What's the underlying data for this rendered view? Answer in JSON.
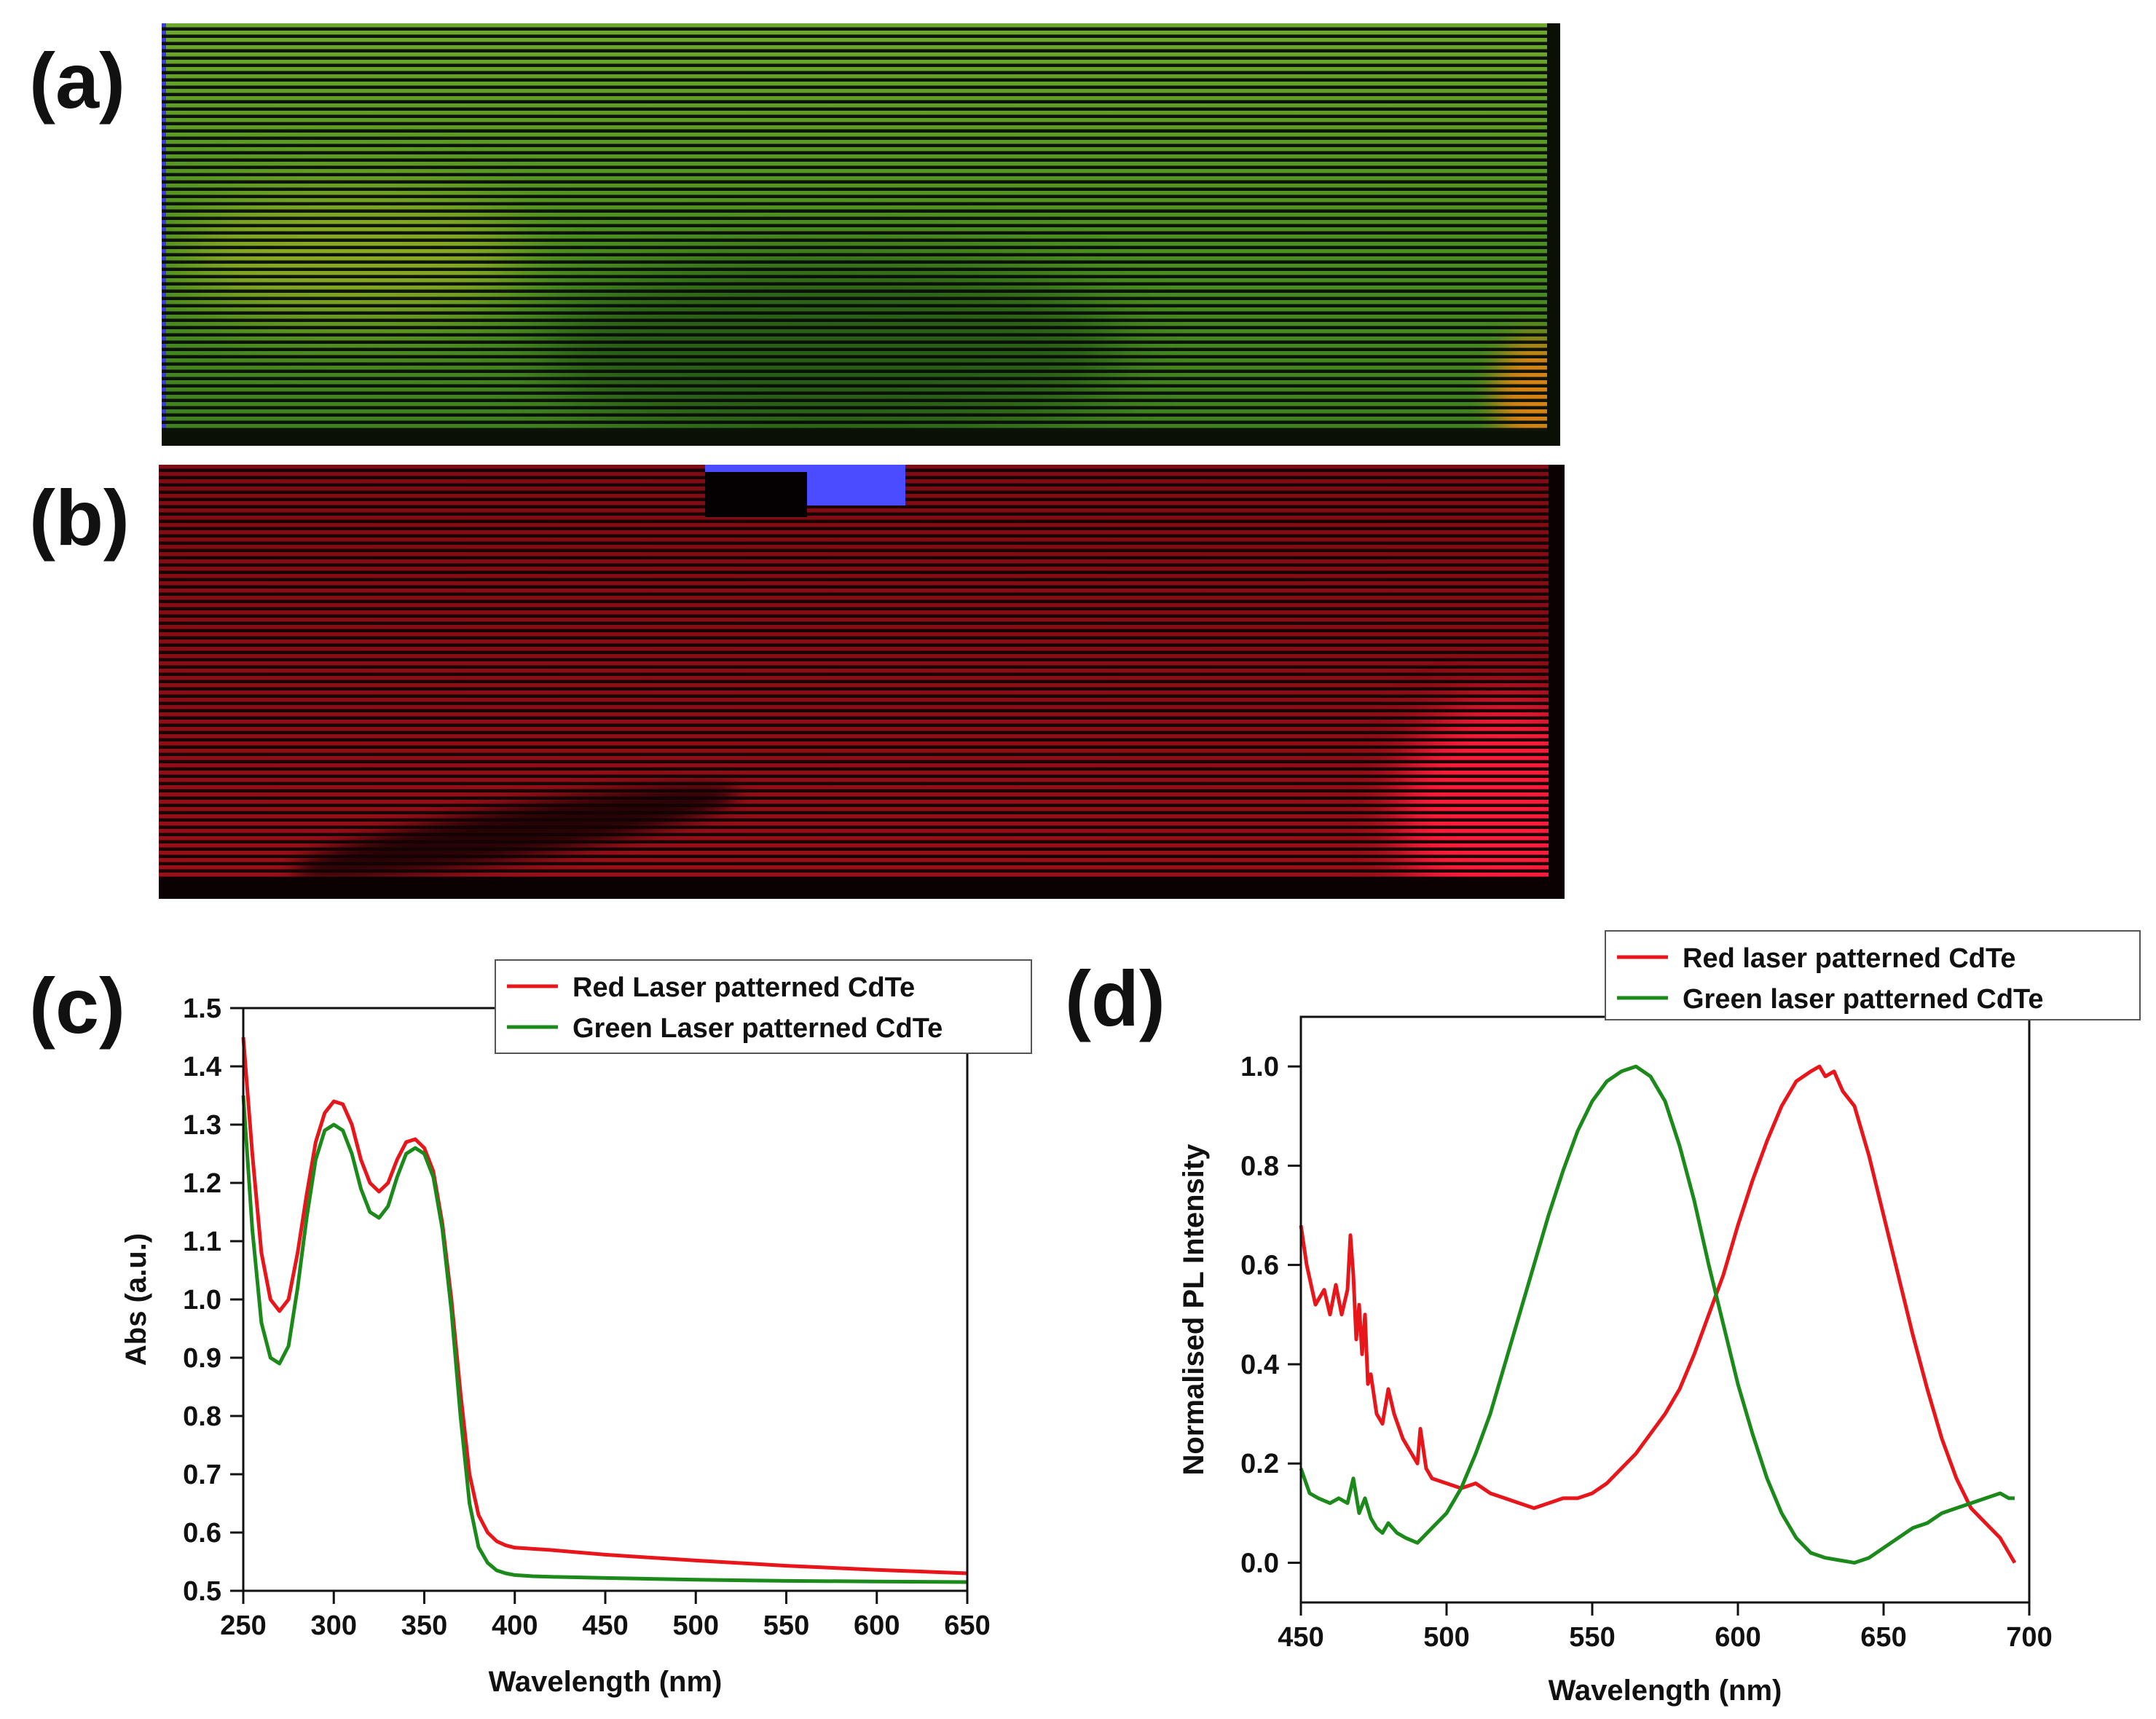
{
  "panels": {
    "a": {
      "label": "(a)"
    },
    "b": {
      "label": "(b)"
    },
    "c": {
      "label": "(c)"
    },
    "d": {
      "label": "(d)"
    }
  },
  "colors": {
    "red": "#e8151b",
    "green": "#1b8a1b",
    "axis": "#111111"
  },
  "chart_data": [
    {
      "id": "c",
      "type": "line",
      "title": "",
      "xlabel": "Wavelength (nm)",
      "ylabel": "Abs (a.u.)",
      "xlim": [
        250,
        650
      ],
      "ylim": [
        0.5,
        1.5
      ],
      "xticks": [
        250,
        300,
        350,
        400,
        450,
        500,
        550,
        600,
        650
      ],
      "yticks": [
        0.5,
        0.6,
        0.7,
        0.8,
        0.9,
        1.0,
        1.1,
        1.2,
        1.3,
        1.4,
        1.5
      ],
      "xtick_labels": [
        "250",
        "300",
        "350",
        "400",
        "450",
        "500",
        "550",
        "600",
        "650"
      ],
      "ytick_labels": [
        "0.5",
        "0.6",
        "0.7",
        "0.8",
        "0.9",
        "1.0",
        "1.1",
        "1.2",
        "1.3",
        "1.4",
        "1.5"
      ],
      "legend_position": "top-right",
      "series": [
        {
          "name": "Red Laser patterned CdTe",
          "color": "#e8151b",
          "x": [
            250,
            255,
            260,
            265,
            270,
            275,
            280,
            285,
            290,
            295,
            300,
            305,
            310,
            315,
            320,
            325,
            330,
            335,
            340,
            345,
            350,
            355,
            360,
            365,
            370,
            375,
            380,
            385,
            390,
            395,
            400,
            410,
            420,
            450,
            500,
            550,
            600,
            650
          ],
          "y": [
            1.45,
            1.25,
            1.08,
            1.0,
            0.98,
            1.0,
            1.08,
            1.18,
            1.27,
            1.32,
            1.34,
            1.335,
            1.3,
            1.24,
            1.2,
            1.185,
            1.2,
            1.24,
            1.27,
            1.275,
            1.26,
            1.22,
            1.13,
            1.0,
            0.84,
            0.7,
            0.63,
            0.6,
            0.585,
            0.578,
            0.574,
            0.572,
            0.57,
            0.562,
            0.552,
            0.543,
            0.536,
            0.53
          ]
        },
        {
          "name": "Green Laser patterned CdTe",
          "color": "#1b8a1b",
          "x": [
            250,
            255,
            260,
            265,
            270,
            275,
            280,
            285,
            290,
            295,
            300,
            305,
            310,
            315,
            320,
            325,
            330,
            335,
            340,
            345,
            350,
            355,
            360,
            365,
            370,
            375,
            380,
            385,
            390,
            395,
            400,
            410,
            420,
            450,
            500,
            550,
            600,
            650
          ],
          "y": [
            1.35,
            1.12,
            0.96,
            0.9,
            0.89,
            0.92,
            1.02,
            1.14,
            1.24,
            1.29,
            1.3,
            1.29,
            1.25,
            1.19,
            1.15,
            1.14,
            1.16,
            1.21,
            1.25,
            1.26,
            1.25,
            1.21,
            1.12,
            0.98,
            0.8,
            0.65,
            0.575,
            0.548,
            0.535,
            0.53,
            0.527,
            0.525,
            0.524,
            0.522,
            0.519,
            0.517,
            0.516,
            0.515
          ]
        }
      ]
    },
    {
      "id": "d",
      "type": "line",
      "title": "",
      "xlabel": "Wavelength (nm)",
      "ylabel": "Normalised PL Intensity",
      "xlim": [
        450,
        700
      ],
      "ylim": [
        -0.08,
        1.1
      ],
      "xticks": [
        450,
        500,
        550,
        600,
        650,
        700
      ],
      "yticks": [
        0.0,
        0.2,
        0.4,
        0.6,
        0.8,
        1.0
      ],
      "xtick_labels": [
        "450",
        "500",
        "550",
        "600",
        "650",
        "700"
      ],
      "ytick_labels": [
        "0.0",
        "0.2",
        "0.4",
        "0.6",
        "0.8",
        "1.0"
      ],
      "legend_position": "top-right",
      "series": [
        {
          "name": "Red laser patterned CdTe",
          "color": "#e8151b",
          "x": [
            450,
            452,
            455,
            458,
            460,
            462,
            464,
            466,
            467,
            468,
            469,
            470,
            471,
            472,
            473,
            474,
            476,
            478,
            480,
            482,
            485,
            488,
            490,
            491,
            493,
            495,
            500,
            505,
            510,
            515,
            520,
            525,
            530,
            535,
            540,
            545,
            550,
            555,
            560,
            565,
            570,
            575,
            580,
            585,
            590,
            595,
            600,
            605,
            610,
            615,
            620,
            625,
            628,
            630,
            633,
            636,
            640,
            645,
            650,
            655,
            660,
            665,
            670,
            675,
            680,
            685,
            690,
            693,
            695
          ],
          "y": [
            0.68,
            0.6,
            0.52,
            0.55,
            0.5,
            0.56,
            0.5,
            0.55,
            0.66,
            0.58,
            0.45,
            0.52,
            0.42,
            0.5,
            0.36,
            0.38,
            0.3,
            0.28,
            0.35,
            0.3,
            0.25,
            0.22,
            0.2,
            0.27,
            0.19,
            0.17,
            0.16,
            0.15,
            0.16,
            0.14,
            0.13,
            0.12,
            0.11,
            0.12,
            0.13,
            0.13,
            0.14,
            0.16,
            0.19,
            0.22,
            0.26,
            0.3,
            0.35,
            0.42,
            0.5,
            0.58,
            0.68,
            0.77,
            0.85,
            0.92,
            0.97,
            0.99,
            1.0,
            0.98,
            0.99,
            0.95,
            0.92,
            0.82,
            0.7,
            0.58,
            0.46,
            0.35,
            0.25,
            0.17,
            0.11,
            0.08,
            0.05,
            0.02,
            0.0
          ]
        },
        {
          "name": "Green laser patterned CdTe",
          "color": "#1b8a1b",
          "x": [
            450,
            453,
            456,
            460,
            463,
            466,
            468,
            470,
            472,
            474,
            476,
            478,
            480,
            483,
            486,
            490,
            495,
            500,
            505,
            510,
            515,
            520,
            525,
            530,
            535,
            540,
            545,
            550,
            555,
            560,
            565,
            570,
            575,
            580,
            585,
            590,
            595,
            600,
            605,
            610,
            615,
            620,
            625,
            630,
            635,
            640,
            645,
            650,
            655,
            660,
            665,
            670,
            675,
            680,
            685,
            690,
            693,
            695
          ],
          "y": [
            0.19,
            0.14,
            0.13,
            0.12,
            0.13,
            0.12,
            0.17,
            0.1,
            0.13,
            0.09,
            0.07,
            0.06,
            0.08,
            0.06,
            0.05,
            0.04,
            0.07,
            0.1,
            0.15,
            0.22,
            0.3,
            0.4,
            0.5,
            0.6,
            0.7,
            0.79,
            0.87,
            0.93,
            0.97,
            0.99,
            1.0,
            0.98,
            0.93,
            0.84,
            0.73,
            0.6,
            0.48,
            0.36,
            0.26,
            0.17,
            0.1,
            0.05,
            0.02,
            0.01,
            0.005,
            0.0,
            0.01,
            0.03,
            0.05,
            0.07,
            0.08,
            0.1,
            0.11,
            0.12,
            0.13,
            0.14,
            0.13,
            0.13
          ]
        }
      ]
    }
  ]
}
